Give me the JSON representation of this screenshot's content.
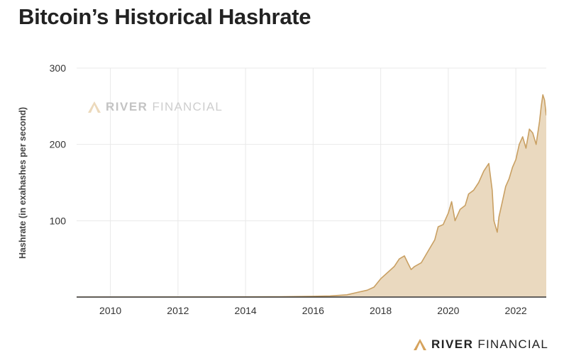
{
  "title": "Bitcoin’s Historical Hashrate",
  "brand": {
    "bold": "RIVER",
    "regular": "FINANCIAL",
    "accent_color": "#d6a35d"
  },
  "watermark": {
    "bold": "RIVER",
    "regular": "FINANCIAL"
  },
  "chart_data": {
    "type": "area",
    "ylabel": "Hashrate (in exahashes per second)",
    "xlabel": "",
    "xlim": [
      2009.0,
      2022.9
    ],
    "ylim": [
      0,
      300
    ],
    "x_ticks": [
      2010,
      2012,
      2014,
      2016,
      2018,
      2020,
      2022
    ],
    "x_tick_labels": [
      "2010",
      "2012",
      "2014",
      "2016",
      "2018",
      "2020",
      "2022"
    ],
    "y_ticks": [
      100,
      200,
      300
    ],
    "y_tick_labels": [
      "100",
      "200",
      "300"
    ],
    "grid": true,
    "line_color": "#c9a063",
    "fill_color": "#ead9bf",
    "series": [
      {
        "x": [
          2009.0,
          2014.0,
          2015.0,
          2016.0,
          2016.5,
          2017.0,
          2017.3,
          2017.6,
          2017.8,
          2018.0,
          2018.2,
          2018.4,
          2018.55,
          2018.7,
          2018.8,
          2018.9,
          2019.0,
          2019.2,
          2019.4,
          2019.6,
          2019.7,
          2019.85,
          2020.0,
          2020.1,
          2020.2,
          2020.35,
          2020.5,
          2020.6,
          2020.75,
          2020.9,
          2021.05,
          2021.2,
          2021.3,
          2021.35,
          2021.45,
          2021.5,
          2021.6,
          2021.7,
          2021.8,
          2021.9,
          2022.0,
          2022.1,
          2022.2,
          2022.3,
          2022.4,
          2022.5,
          2022.6,
          2022.7,
          2022.75,
          2022.8,
          2022.85,
          2022.9
        ],
        "y": [
          0,
          0.3,
          0.5,
          1,
          1.5,
          3,
          6,
          9,
          13,
          24,
          32,
          40,
          50,
          54,
          45,
          36,
          40,
          45,
          60,
          75,
          92,
          95,
          110,
          125,
          100,
          115,
          120,
          135,
          140,
          150,
          165,
          175,
          140,
          100,
          85,
          105,
          125,
          145,
          155,
          170,
          180,
          200,
          210,
          195,
          220,
          215,
          200,
          230,
          250,
          265,
          258,
          238
        ]
      }
    ]
  }
}
